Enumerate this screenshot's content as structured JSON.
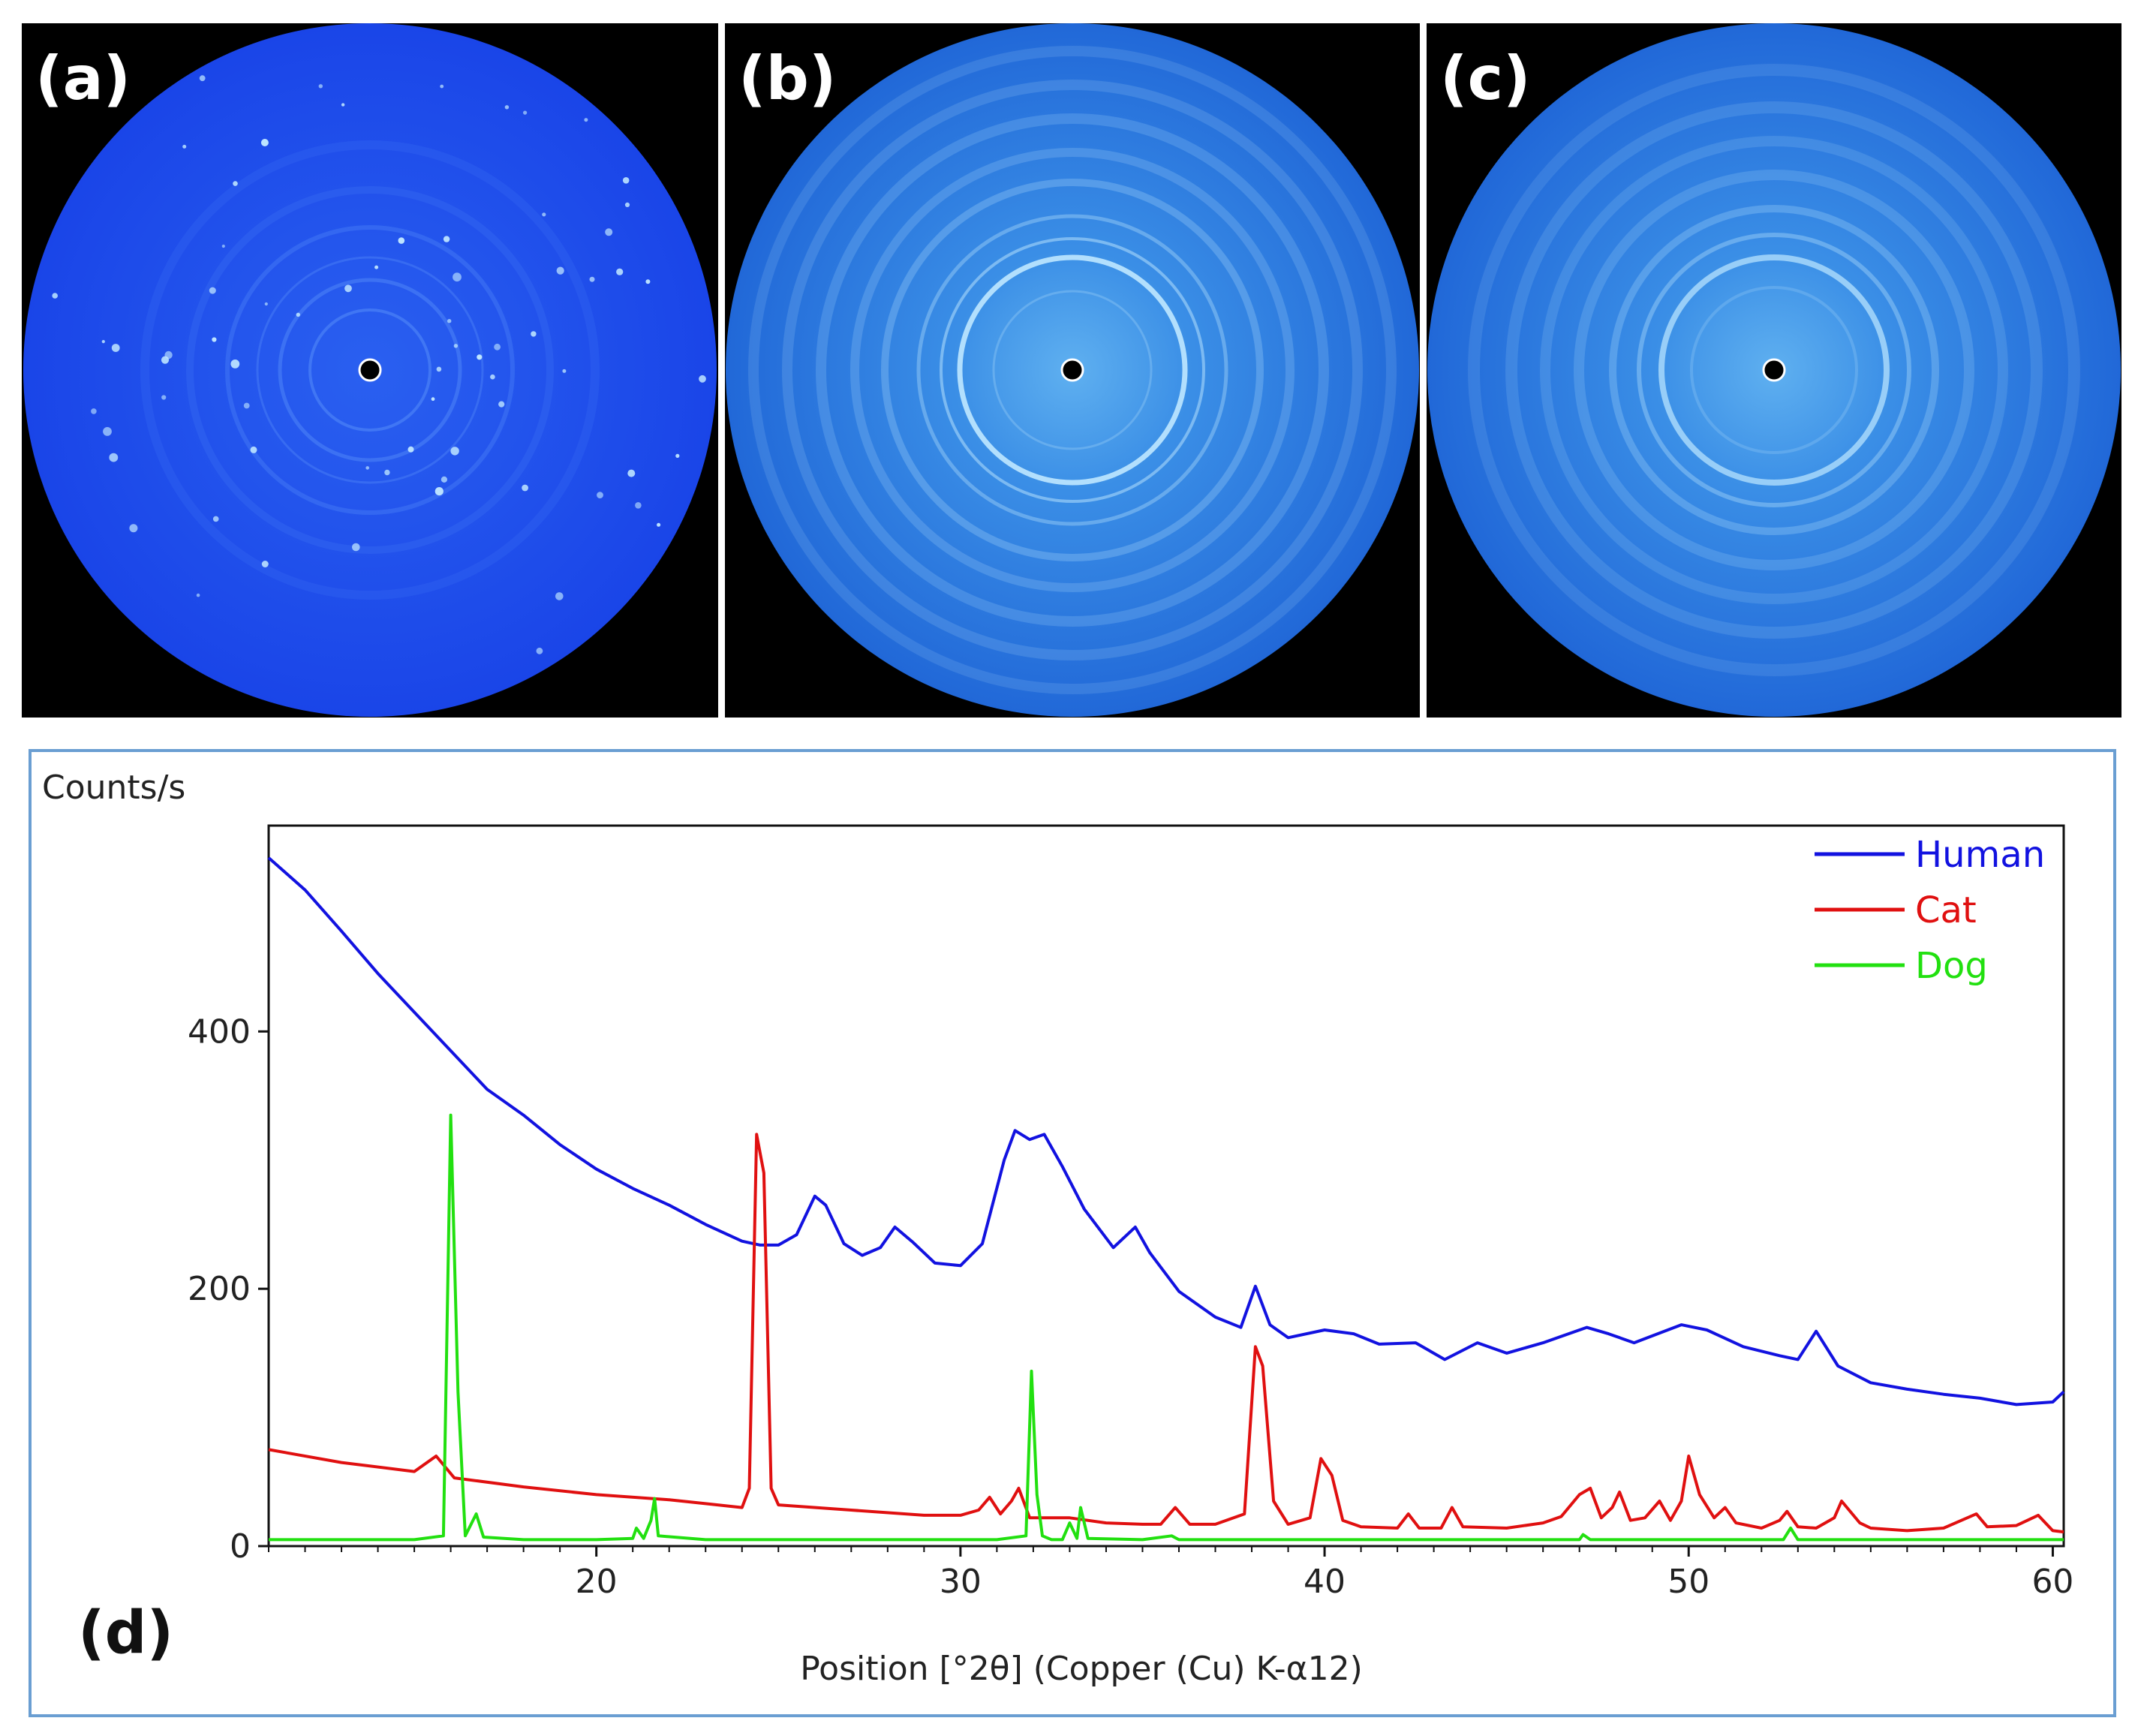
{
  "panels": [
    {
      "label": "(a)",
      "type": "spots"
    },
    {
      "label": "(b)",
      "type": "rings"
    },
    {
      "label": "(c)",
      "type": "rings-diffuse"
    }
  ],
  "chart_data": {
    "type": "line",
    "panel_label": "(d)",
    "ylabel": "Counts/s",
    "xlabel": "Position [°2θ] (Copper (Cu) K-α12)",
    "xlim": [
      11,
      60.3
    ],
    "ylim": [
      0,
      560
    ],
    "x_ticks": [
      20,
      30,
      40,
      50,
      60
    ],
    "y_ticks": [
      0,
      200,
      400
    ],
    "legend_position": "top-right",
    "series": [
      {
        "name": "Human",
        "color": "#1212e0",
        "points": [
          [
            11,
            535
          ],
          [
            12,
            510
          ],
          [
            13,
            478
          ],
          [
            14,
            445
          ],
          [
            15,
            415
          ],
          [
            16,
            385
          ],
          [
            17,
            355
          ],
          [
            17.4,
            347
          ],
          [
            18,
            335
          ],
          [
            19,
            312
          ],
          [
            20,
            293
          ],
          [
            21,
            278
          ],
          [
            22,
            265
          ],
          [
            23,
            250
          ],
          [
            24,
            237
          ],
          [
            24.5,
            234
          ],
          [
            25,
            234
          ],
          [
            25.5,
            242
          ],
          [
            26,
            272
          ],
          [
            26.3,
            265
          ],
          [
            26.8,
            235
          ],
          [
            27.3,
            226
          ],
          [
            27.8,
            232
          ],
          [
            28.2,
            248
          ],
          [
            28.7,
            236
          ],
          [
            29.3,
            220
          ],
          [
            30,
            218
          ],
          [
            30.6,
            235
          ],
          [
            31.2,
            300
          ],
          [
            31.5,
            323
          ],
          [
            31.9,
            316
          ],
          [
            32.3,
            320
          ],
          [
            32.8,
            295
          ],
          [
            33.4,
            262
          ],
          [
            34.2,
            232
          ],
          [
            34.8,
            248
          ],
          [
            35.2,
            228
          ],
          [
            36,
            198
          ],
          [
            37,
            178
          ],
          [
            37.7,
            170
          ],
          [
            38.1,
            202
          ],
          [
            38.5,
            172
          ],
          [
            39,
            162
          ],
          [
            40,
            168
          ],
          [
            40.8,
            165
          ],
          [
            41.5,
            157
          ],
          [
            42.5,
            158
          ],
          [
            43.3,
            145
          ],
          [
            44.2,
            158
          ],
          [
            45,
            150
          ],
          [
            46,
            158
          ],
          [
            47.2,
            170
          ],
          [
            47.8,
            165
          ],
          [
            48.5,
            158
          ],
          [
            49.8,
            172
          ],
          [
            50.5,
            168
          ],
          [
            51.5,
            155
          ],
          [
            52.5,
            148
          ],
          [
            53,
            145
          ],
          [
            53.5,
            167
          ],
          [
            54.1,
            140
          ],
          [
            55,
            127
          ],
          [
            56,
            122
          ],
          [
            57,
            118
          ],
          [
            58,
            115
          ],
          [
            59,
            110
          ],
          [
            60,
            112
          ],
          [
            60.3,
            120
          ]
        ]
      },
      {
        "name": "Cat",
        "color": "#e01010",
        "points": [
          [
            11,
            75
          ],
          [
            13,
            65
          ],
          [
            15,
            58
          ],
          [
            15.6,
            70
          ],
          [
            16.1,
            53
          ],
          [
            18,
            46
          ],
          [
            20,
            40
          ],
          [
            22,
            36
          ],
          [
            23,
            33
          ],
          [
            24,
            30
          ],
          [
            24.2,
            45
          ],
          [
            24.4,
            320
          ],
          [
            24.6,
            290
          ],
          [
            24.8,
            45
          ],
          [
            25,
            32
          ],
          [
            27,
            28
          ],
          [
            29,
            24
          ],
          [
            30,
            24
          ],
          [
            30.5,
            28
          ],
          [
            30.8,
            38
          ],
          [
            31.1,
            25
          ],
          [
            31.4,
            35
          ],
          [
            31.6,
            45
          ],
          [
            31.9,
            22
          ],
          [
            33,
            22
          ],
          [
            34,
            18
          ],
          [
            35,
            17
          ],
          [
            35.5,
            17
          ],
          [
            35.9,
            30
          ],
          [
            36.3,
            17
          ],
          [
            37,
            17
          ],
          [
            37.8,
            25
          ],
          [
            38.1,
            155
          ],
          [
            38.3,
            140
          ],
          [
            38.6,
            35
          ],
          [
            39,
            17
          ],
          [
            39.6,
            22
          ],
          [
            39.9,
            68
          ],
          [
            40.2,
            55
          ],
          [
            40.5,
            20
          ],
          [
            41,
            15
          ],
          [
            42,
            14
          ],
          [
            42.3,
            25
          ],
          [
            42.6,
            14
          ],
          [
            43.2,
            14
          ],
          [
            43.5,
            30
          ],
          [
            43.8,
            15
          ],
          [
            45,
            14
          ],
          [
            46,
            18
          ],
          [
            46.5,
            23
          ],
          [
            47,
            40
          ],
          [
            47.3,
            45
          ],
          [
            47.6,
            22
          ],
          [
            47.9,
            30
          ],
          [
            48.1,
            42
          ],
          [
            48.4,
            20
          ],
          [
            48.8,
            22
          ],
          [
            49.2,
            35
          ],
          [
            49.5,
            20
          ],
          [
            49.8,
            35
          ],
          [
            50,
            70
          ],
          [
            50.3,
            40
          ],
          [
            50.7,
            22
          ],
          [
            51,
            30
          ],
          [
            51.3,
            18
          ],
          [
            52,
            14
          ],
          [
            52.5,
            20
          ],
          [
            52.7,
            27
          ],
          [
            53,
            15
          ],
          [
            53.5,
            14
          ],
          [
            54,
            22
          ],
          [
            54.2,
            35
          ],
          [
            54.7,
            18
          ],
          [
            55,
            14
          ],
          [
            56,
            12
          ],
          [
            57,
            14
          ],
          [
            57.9,
            25
          ],
          [
            58.2,
            15
          ],
          [
            59,
            16
          ],
          [
            59.6,
            24
          ],
          [
            60,
            12
          ],
          [
            60.3,
            11
          ]
        ]
      },
      {
        "name": "Dog",
        "color": "#22e010",
        "points": [
          [
            11,
            5
          ],
          [
            13,
            5
          ],
          [
            15,
            5
          ],
          [
            15.8,
            8
          ],
          [
            16,
            335
          ],
          [
            16.2,
            120
          ],
          [
            16.4,
            8
          ],
          [
            16.7,
            25
          ],
          [
            16.9,
            7
          ],
          [
            18,
            5
          ],
          [
            20,
            5
          ],
          [
            21,
            6
          ],
          [
            21.1,
            14
          ],
          [
            21.3,
            6
          ],
          [
            21.5,
            20
          ],
          [
            21.6,
            37
          ],
          [
            21.7,
            8
          ],
          [
            23,
            5
          ],
          [
            25,
            5
          ],
          [
            27,
            5
          ],
          [
            29,
            5
          ],
          [
            31,
            5
          ],
          [
            31.8,
            8
          ],
          [
            31.95,
            136
          ],
          [
            32.1,
            40
          ],
          [
            32.25,
            8
          ],
          [
            32.5,
            5
          ],
          [
            32.8,
            5
          ],
          [
            33,
            18
          ],
          [
            33.2,
            6
          ],
          [
            33.3,
            30
          ],
          [
            33.5,
            6
          ],
          [
            35,
            5
          ],
          [
            35.8,
            8
          ],
          [
            36,
            5
          ],
          [
            38,
            5
          ],
          [
            40,
            5
          ],
          [
            42,
            5
          ],
          [
            45,
            5
          ],
          [
            47,
            5
          ],
          [
            47.1,
            9
          ],
          [
            47.3,
            5
          ],
          [
            50,
            5
          ],
          [
            52.6,
            5
          ],
          [
            52.8,
            14
          ],
          [
            53,
            5
          ],
          [
            55,
            5
          ],
          [
            58,
            5
          ],
          [
            60,
            5
          ],
          [
            60.3,
            5
          ]
        ]
      }
    ]
  }
}
